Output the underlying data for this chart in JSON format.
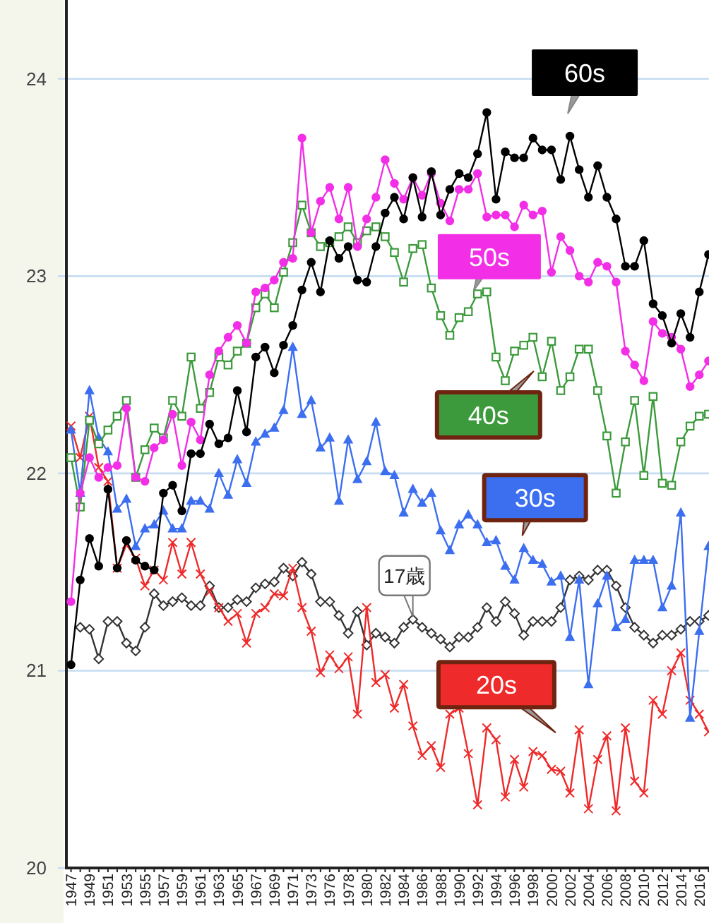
{
  "chart_data": {
    "type": "line",
    "categories": [
      "1947",
      null,
      "1949",
      null,
      "1951",
      null,
      "1953",
      null,
      "1955",
      null,
      "1957",
      null,
      "1959",
      null,
      "1961",
      null,
      "1963",
      null,
      "1965",
      null,
      "1967",
      null,
      "1969",
      null,
      "1971",
      null,
      "1973",
      null,
      "1976",
      null,
      "1978",
      null,
      "1980",
      null,
      "1982",
      null,
      "1984",
      null,
      "1986",
      null,
      "1988",
      null,
      "1990",
      null,
      "1992",
      null,
      "1994",
      null,
      "1996",
      null,
      "1998",
      null,
      "2000",
      null,
      "2002",
      null,
      "2004",
      null,
      "2006",
      null,
      "2008",
      null,
      "2010",
      null,
      "2012",
      null,
      "2014",
      null,
      "2016",
      null
    ],
    "ylim": [
      20,
      24.4
    ],
    "yticks": [
      20,
      21,
      22,
      23,
      24
    ],
    "grid": "y",
    "series": [
      {
        "name": "60s",
        "color": "#000000",
        "marker": "circle",
        "values": [
          21.03,
          21.46,
          21.67,
          21.53,
          21.92,
          21.52,
          21.66,
          21.56,
          21.53,
          21.51,
          21.9,
          21.94,
          21.81,
          22.1,
          22.1,
          22.25,
          22.15,
          22.18,
          22.42,
          22.21,
          22.59,
          22.64,
          22.51,
          22.65,
          22.75,
          22.93,
          23.07,
          22.92,
          23.18,
          23.09,
          23.15,
          22.98,
          22.97,
          23.15,
          23.32,
          23.4,
          23.29,
          23.5,
          23.3,
          23.53,
          23.31,
          23.44,
          23.52,
          23.5,
          23.62,
          23.83,
          23.39,
          23.63,
          23.6,
          23.6,
          23.7,
          23.64,
          23.64,
          23.49,
          23.71,
          23.54,
          23.4,
          23.56,
          23.4,
          23.29,
          23.05,
          23.05,
          23.18,
          22.86,
          22.8,
          22.66,
          22.81,
          22.69,
          22.92,
          23.11
        ]
      },
      {
        "name": "50s",
        "color": "#f22ee6",
        "marker": "circle",
        "values": [
          21.35,
          21.9,
          22.08,
          21.98,
          22.03,
          22.04,
          22.33,
          21.98,
          21.96,
          22.13,
          22.17,
          22.3,
          22.04,
          22.26,
          22.17,
          22.5,
          22.62,
          22.69,
          22.75,
          22.66,
          22.92,
          22.94,
          22.98,
          23.07,
          23.09,
          23.7,
          23.22,
          23.38,
          23.45,
          23.29,
          23.45,
          23.15,
          23.29,
          23.4,
          23.59,
          23.47,
          23.39,
          23.5,
          23.41,
          23.52,
          23.37,
          23.28,
          23.44,
          23.44,
          23.52,
          23.3,
          23.31,
          23.31,
          23.25,
          23.36,
          23.31,
          23.33,
          23.02,
          23.2,
          23.13,
          23.0,
          22.97,
          23.07,
          23.05,
          22.97,
          22.62,
          22.55,
          22.47,
          22.77,
          22.71,
          22.69,
          22.63,
          22.44,
          22.5,
          22.57
        ]
      },
      {
        "name": "40s",
        "color": "#3c9a3c",
        "marker": "square",
        "values": [
          22.08,
          21.83,
          22.27,
          22.15,
          22.22,
          22.29,
          22.37,
          21.98,
          22.12,
          22.23,
          22.18,
          22.37,
          22.29,
          22.59,
          22.33,
          22.41,
          22.59,
          22.55,
          22.62,
          22.66,
          22.84,
          22.91,
          22.84,
          23.02,
          23.17,
          23.36,
          23.22,
          23.15,
          23.17,
          23.2,
          23.25,
          23.17,
          23.23,
          23.25,
          23.2,
          23.12,
          22.97,
          23.14,
          23.16,
          22.94,
          22.8,
          22.7,
          22.79,
          22.82,
          22.91,
          22.92,
          22.59,
          22.47,
          22.62,
          22.65,
          22.69,
          22.49,
          22.67,
          22.42,
          22.49,
          22.63,
          22.63,
          22.42,
          22.19,
          21.9,
          22.16,
          22.37,
          21.99,
          22.39,
          21.95,
          21.94,
          22.16,
          22.24,
          22.29,
          22.3
        ]
      },
      {
        "name": "30s",
        "color": "#3c6ef0",
        "marker": "triangle",
        "values": [
          22.22,
          21.9,
          22.42,
          22.18,
          22.11,
          21.82,
          21.87,
          21.63,
          21.72,
          21.74,
          21.81,
          21.72,
          21.72,
          21.86,
          21.86,
          21.82,
          22.0,
          21.89,
          22.07,
          21.95,
          22.16,
          22.2,
          22.23,
          22.32,
          22.64,
          22.3,
          22.37,
          22.13,
          22.18,
          21.86,
          22.17,
          21.97,
          22.06,
          22.26,
          22.01,
          21.99,
          21.8,
          21.92,
          21.85,
          21.9,
          21.71,
          21.61,
          21.74,
          21.79,
          21.74,
          21.65,
          21.66,
          21.53,
          21.46,
          21.62,
          21.56,
          21.54,
          21.45,
          21.48,
          21.17,
          21.46,
          20.93,
          21.34,
          21.48,
          21.22,
          21.26,
          21.56,
          21.56,
          21.56,
          21.32,
          21.43,
          21.8,
          20.76,
          21.2,
          21.63
        ]
      },
      {
        "name": "17歳",
        "color": "#333333",
        "marker": "diamond",
        "values": [
          null,
          21.22,
          21.21,
          21.06,
          21.25,
          21.25,
          21.14,
          21.1,
          21.22,
          21.39,
          21.33,
          21.35,
          21.37,
          21.33,
          21.33,
          21.43,
          21.32,
          21.32,
          21.36,
          21.35,
          21.42,
          21.44,
          21.45,
          21.52,
          21.48,
          21.55,
          21.49,
          21.35,
          21.35,
          21.28,
          21.19,
          21.3,
          21.13,
          21.19,
          21.17,
          21.14,
          21.22,
          21.26,
          21.22,
          21.19,
          21.16,
          21.12,
          21.17,
          21.17,
          21.22,
          21.32,
          21.25,
          21.35,
          21.29,
          21.18,
          21.25,
          21.25,
          21.25,
          21.32,
          21.46,
          21.48,
          21.46,
          21.51,
          21.51,
          21.43,
          21.32,
          21.22,
          21.18,
          21.14,
          21.18,
          21.18,
          21.21,
          21.25,
          21.25,
          21.28
        ]
      },
      {
        "name": "20s",
        "color": "#ee2a2a",
        "marker": "cross",
        "values": [
          22.24,
          22.08,
          22.29,
          22.03,
          21.96,
          21.52,
          21.64,
          21.57,
          21.43,
          21.51,
          21.46,
          21.65,
          21.49,
          21.65,
          21.49,
          21.4,
          21.32,
          21.25,
          21.29,
          21.14,
          21.29,
          21.32,
          21.39,
          21.38,
          21.52,
          21.32,
          21.2,
          20.99,
          21.08,
          21.01,
          21.07,
          20.78,
          21.32,
          20.94,
          20.98,
          20.81,
          20.93,
          20.72,
          20.57,
          20.62,
          20.51,
          20.78,
          20.81,
          20.58,
          20.32,
          20.71,
          20.65,
          20.36,
          20.55,
          20.41,
          20.59,
          20.57,
          20.5,
          20.49,
          20.38,
          20.7,
          20.3,
          20.55,
          20.67,
          20.29,
          20.71,
          20.44,
          20.38,
          20.85,
          20.78,
          21.0,
          21.09,
          20.85,
          20.78,
          20.69
        ]
      }
    ]
  }
}
